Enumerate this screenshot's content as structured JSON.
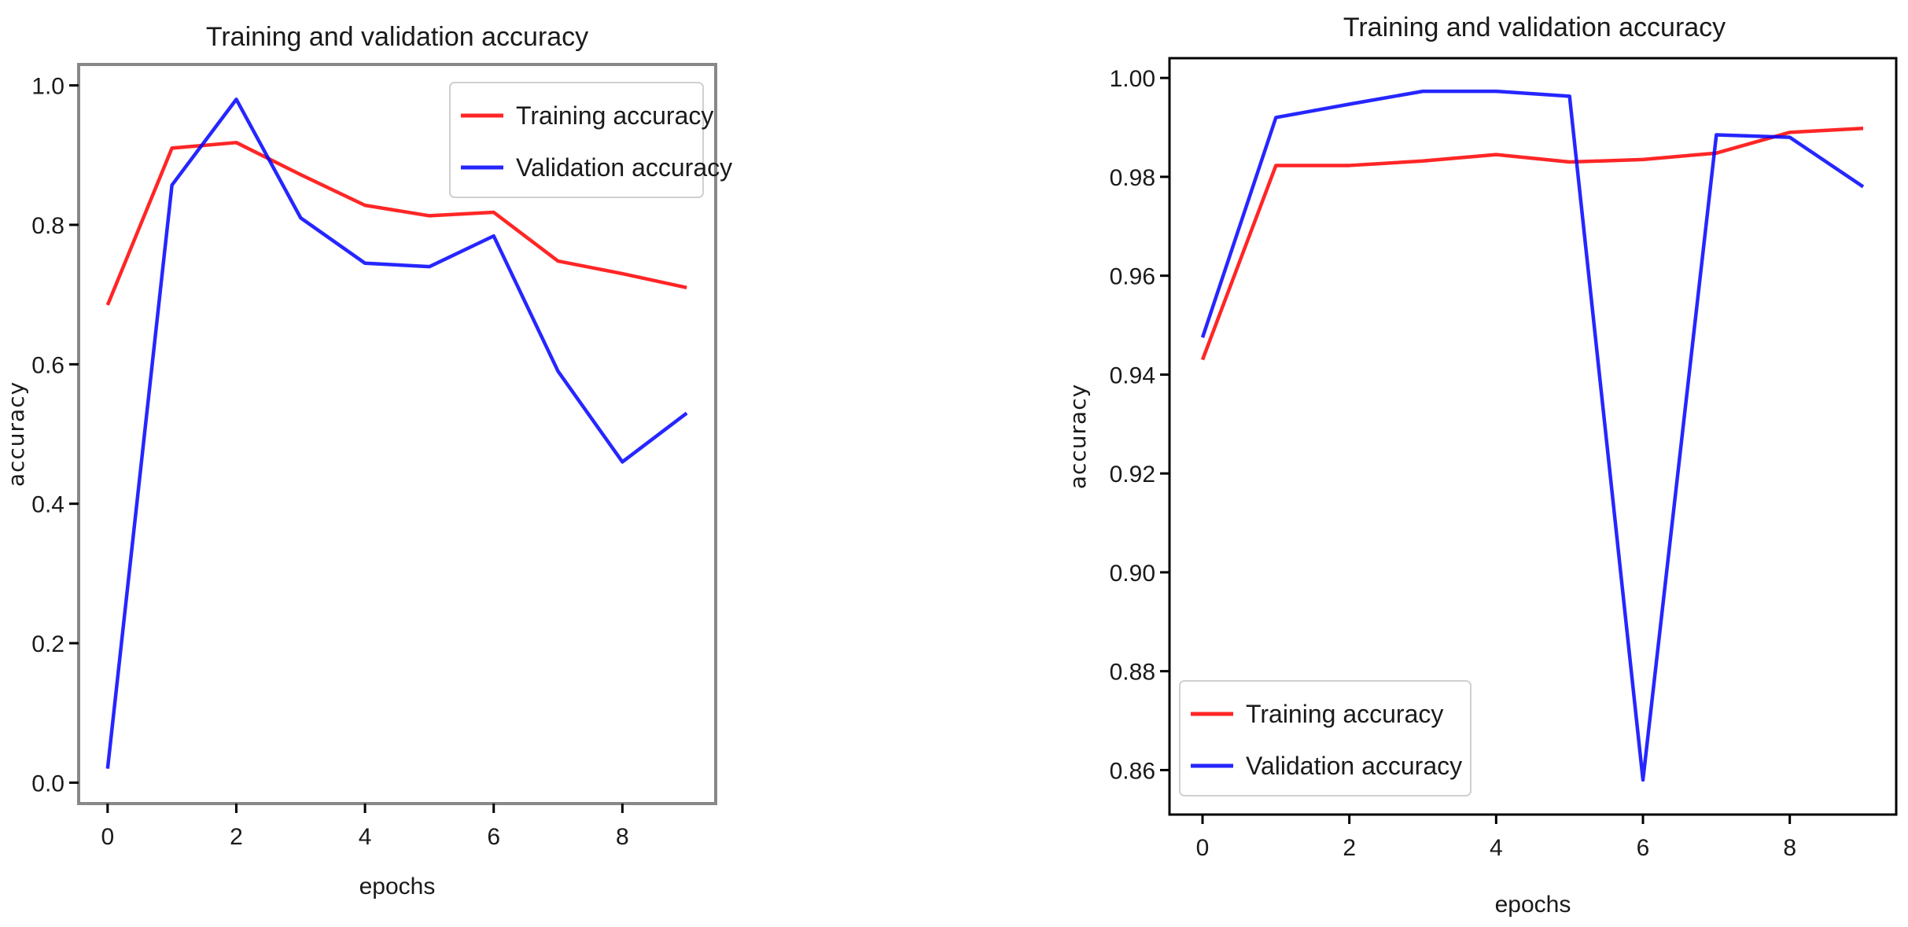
{
  "chart_data": [
    {
      "type": "line",
      "title": "Training and validation accuracy",
      "xlabel": "epochs",
      "ylabel": "accuracy",
      "x": [
        0,
        1,
        2,
        3,
        4,
        5,
        6,
        7,
        8,
        9
      ],
      "xticks": [
        0,
        2,
        4,
        6,
        8
      ],
      "xtick_labels": [
        "0",
        "2",
        "4",
        "6",
        "8"
      ],
      "yticks": [
        0.0,
        0.2,
        0.4,
        0.6,
        0.8,
        1.0
      ],
      "ytick_labels": [
        "0.0",
        "0.2",
        "0.4",
        "0.6",
        "0.8",
        "1.0"
      ],
      "xlim": [
        -0.45,
        9.45
      ],
      "ylim": [
        -0.03,
        1.03
      ],
      "legend_position": "top-right",
      "series": [
        {
          "name": "Training accuracy",
          "color": "#ff0000",
          "values": [
            0.685,
            0.91,
            0.918,
            0.872,
            0.828,
            0.813,
            0.818,
            0.748,
            0.73,
            0.71
          ]
        },
        {
          "name": "Validation accuracy",
          "color": "#0000ff",
          "values": [
            0.02,
            0.857,
            0.98,
            0.81,
            0.745,
            0.74,
            0.784,
            0.59,
            0.46,
            0.53
          ]
        }
      ]
    },
    {
      "type": "line",
      "title": "Training and validation accuracy",
      "xlabel": "epochs",
      "ylabel": "accuracy",
      "x": [
        0,
        1,
        2,
        3,
        4,
        5,
        6,
        7,
        8,
        9
      ],
      "xticks": [
        0,
        2,
        4,
        6,
        8
      ],
      "xtick_labels": [
        "0",
        "2",
        "4",
        "6",
        "8"
      ],
      "yticks": [
        0.86,
        0.88,
        0.9,
        0.92,
        0.94,
        0.96,
        0.98,
        1.0
      ],
      "ytick_labels": [
        "0.86",
        "0.88",
        "0.90",
        "0.92",
        "0.94",
        "0.96",
        "0.98",
        "1.00"
      ],
      "xlim": [
        -0.45,
        9.45
      ],
      "ylim": [
        0.851,
        1.004
      ],
      "legend_position": "lower-left",
      "series": [
        {
          "name": "Training accuracy",
          "color": "#ff0000",
          "values": [
            0.943,
            0.9823,
            0.9823,
            0.9832,
            0.9845,
            0.983,
            0.9835,
            0.9848,
            0.989,
            0.9898
          ]
        },
        {
          "name": "Validation accuracy",
          "color": "#0000ff",
          "values": [
            0.9475,
            0.992,
            0.9947,
            0.9973,
            0.9973,
            0.9963,
            0.858,
            0.9885,
            0.988,
            0.978
          ]
        }
      ]
    }
  ]
}
